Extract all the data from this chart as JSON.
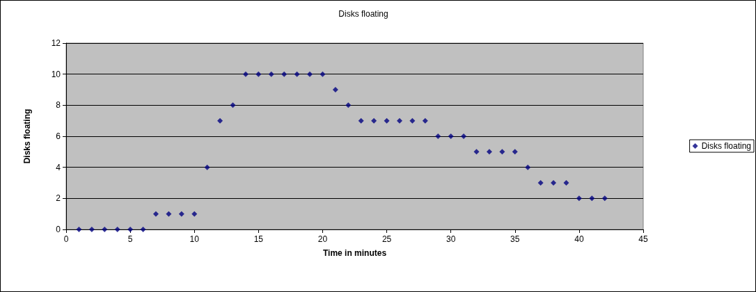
{
  "chart_data": {
    "type": "scatter",
    "title": "Disks floating",
    "xlabel": "Time in minutes",
    "ylabel": "Disks floating",
    "x": [
      1,
      2,
      3,
      4,
      5,
      6,
      7,
      8,
      9,
      10,
      11,
      12,
      13,
      14,
      15,
      16,
      17,
      18,
      19,
      20,
      21,
      22,
      23,
      24,
      25,
      26,
      27,
      28,
      29,
      30,
      31,
      32,
      33,
      34,
      35,
      36,
      37,
      38,
      39,
      40,
      41,
      42
    ],
    "series": [
      {
        "name": "Disks floating",
        "color": "#000080",
        "values": [
          0,
          0,
          0,
          0,
          0,
          0,
          1,
          1,
          1,
          1,
          4,
          7,
          8,
          10,
          10,
          10,
          10,
          10,
          10,
          10,
          9,
          8,
          7,
          7,
          7,
          7,
          7,
          7,
          6,
          6,
          6,
          5,
          5,
          5,
          5,
          4,
          3,
          3,
          3,
          2,
          2,
          2
        ]
      }
    ],
    "xlim": [
      0,
      45
    ],
    "xticks": [
      0,
      5,
      10,
      15,
      20,
      25,
      30,
      35,
      40,
      45
    ],
    "ylim": [
      0,
      12
    ],
    "yticks": [
      0,
      2,
      4,
      6,
      8,
      10,
      12
    ],
    "grid": "y",
    "legend": "right",
    "marker": "diamond"
  }
}
